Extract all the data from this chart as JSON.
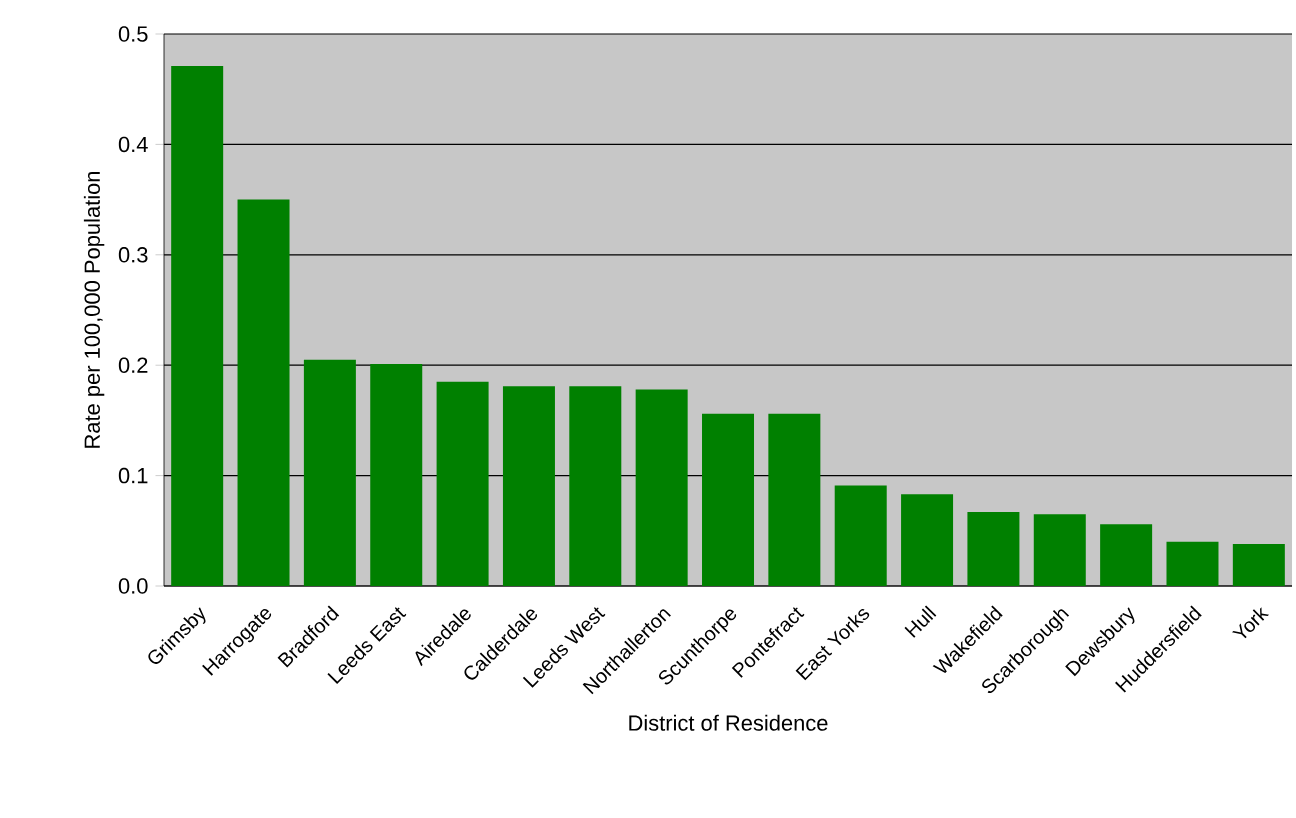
{
  "chart_data": {
    "type": "bar",
    "xlabel": "District of Residence",
    "ylabel": "Rate per 100,000 Population",
    "categories": [
      "Grimsby",
      "Harrogate",
      "Bradford",
      "Leeds East",
      "Airedale",
      "Calderdale",
      "Leeds West",
      "Northallerton",
      "Scunthorpe",
      "Pontefract",
      "East Yorks",
      "Hull",
      "Wakefield",
      "Scarborough",
      "Dewsbury",
      "Huddersfield",
      "York"
    ],
    "values": [
      0.471,
      0.35,
      0.205,
      0.201,
      0.185,
      0.181,
      0.181,
      0.178,
      0.156,
      0.156,
      0.091,
      0.083,
      0.067,
      0.065,
      0.056,
      0.04,
      0.038
    ],
    "color": "#008000",
    "ylim": [
      0,
      0.5
    ],
    "yticks": [
      {
        "value": 0,
        "label": "0.0"
      },
      0.1,
      0.2,
      0.3,
      0.4,
      0.5
    ],
    "grid": "y"
  }
}
